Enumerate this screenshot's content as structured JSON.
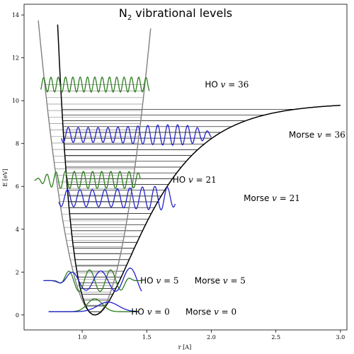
{
  "chart_data": {
    "type": "line",
    "title": "N",
    "title_sub": "2",
    "title_rest": " vibrational levels",
    "xlabel": "r [A]",
    "ylabel": "E [eV]",
    "xlim": [
      0.55,
      3.05
    ],
    "ylim": [
      -0.7,
      14.5
    ],
    "xticks": [
      "1.0",
      "1.5",
      "2.0",
      "2.5",
      "3.0"
    ],
    "xtick_values": [
      1.0,
      1.5,
      2.0,
      2.5,
      3.0
    ],
    "yticks": [
      "0",
      "2",
      "4",
      "6",
      "8",
      "10",
      "12",
      "14"
    ],
    "ytick_values": [
      0,
      2,
      4,
      6,
      8,
      10,
      12,
      14
    ],
    "grid": false,
    "legend": "none",
    "potentials": {
      "harmonic": {
        "r0": 1.098,
        "min_energy": 0.0,
        "color": "#808080",
        "x_range": [
          0.66,
          1.53
        ]
      },
      "morse": {
        "r0": 1.098,
        "well_depth": 9.9,
        "a": 2.69,
        "color": "#000000",
        "x_range": [
          0.81,
          3.0
        ]
      }
    },
    "level_counts": {
      "harmonic": 36,
      "morse": 36
    },
    "wavefunctions": [
      {
        "label_prefix": "HO ",
        "label_var": "v",
        "label_value": "36",
        "energy": 10.75,
        "color": "#2e7d1f",
        "label_x": 1.95,
        "label_y": 10.75
      },
      {
        "label_prefix": "Morse ",
        "label_var": "v",
        "label_value": "36",
        "energy": 8.4,
        "color": "#2222cc",
        "label_x": 2.6,
        "label_y": 8.4
      },
      {
        "label_prefix": "HO ",
        "label_var": "v",
        "label_value": "21",
        "energy": 6.3,
        "color": "#2e7d1f",
        "label_x": 1.7,
        "label_y": 6.3
      },
      {
        "label_prefix": "Morse ",
        "label_var": "v",
        "label_value": "21",
        "energy": 5.45,
        "color": "#2222cc",
        "label_x": 2.25,
        "label_y": 5.45
      },
      {
        "label_prefix": "HO ",
        "label_var": "v",
        "label_value": "5",
        "energy": 1.6,
        "color": "#2e7d1f",
        "label_x": 1.45,
        "label_y": 1.6
      },
      {
        "label_prefix": "Morse ",
        "label_var": "v",
        "label_value": "5",
        "energy": 1.6,
        "color": "#2222cc",
        "label_x": 1.87,
        "label_y": 1.6
      },
      {
        "label_prefix": "HO ",
        "label_var": "v",
        "label_value": "0",
        "energy": 0.15,
        "color": "#2e7d1f",
        "label_x": 1.38,
        "label_y": 0.15
      },
      {
        "label_prefix": "Morse ",
        "label_var": "v",
        "label_value": "0",
        "energy": 0.15,
        "color": "#2222cc",
        "label_x": 1.8,
        "label_y": 0.15
      }
    ]
  }
}
